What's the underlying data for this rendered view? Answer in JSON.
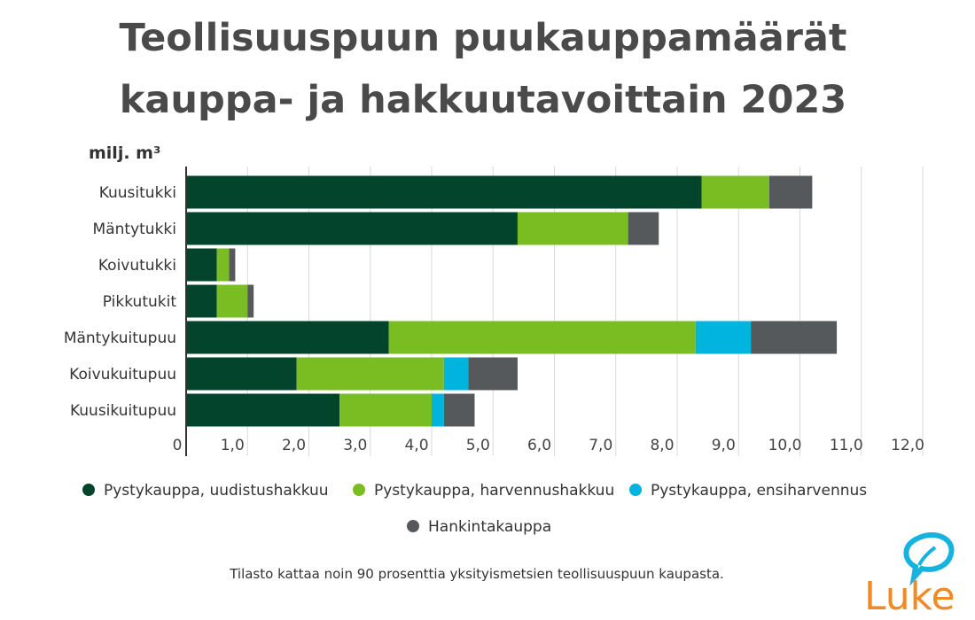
{
  "title_line1": "Teollisuuspuun puukauppamäärät",
  "title_line2": "kauppa- ja hakkuutavoittain 2023",
  "footer": "Tilasto kattaa noin 90 prosenttia yksityismetsien teollisuuspuun kaupasta.",
  "logo_text": "Luke",
  "chart_data": {
    "type": "bar",
    "orientation": "horizontal",
    "stacked": true,
    "ylabel": "milj. m³",
    "xlim": [
      0,
      12
    ],
    "x_ticks": [
      "0",
      "1,0",
      "2,0",
      "3,0",
      "4,0",
      "5,0",
      "6,0",
      "7,0",
      "8,0",
      "9,0",
      "10,0",
      "11,0",
      "12,0"
    ],
    "grid": true,
    "legend_position": "bottom",
    "categories": [
      "Kuusitukki",
      "Mäntytukki",
      "Koivutukki",
      "Pikkutukit",
      "Mäntykuitupuu",
      "Koivukuitupuu",
      "Kuusikuitupuu"
    ],
    "series": [
      {
        "name": "Pystykauppa, uudistushakkuu",
        "color": "#03442c",
        "values": [
          8.4,
          5.4,
          0.5,
          0.5,
          3.3,
          1.8,
          2.5
        ]
      },
      {
        "name": "Pystykauppa, harvennushakkuu",
        "color": "#7abd23",
        "values": [
          1.1,
          1.8,
          0.2,
          0.5,
          5.0,
          2.4,
          1.5
        ]
      },
      {
        "name": "Pystykauppa, ensiharvennus",
        "color": "#00b4e0",
        "values": [
          0,
          0,
          0,
          0,
          0.9,
          0.4,
          0.2
        ]
      },
      {
        "name": "Hankintakauppa",
        "color": "#56595c",
        "values": [
          0.7,
          0.5,
          0.1,
          0.1,
          1.4,
          0.8,
          0.5
        ]
      }
    ]
  }
}
